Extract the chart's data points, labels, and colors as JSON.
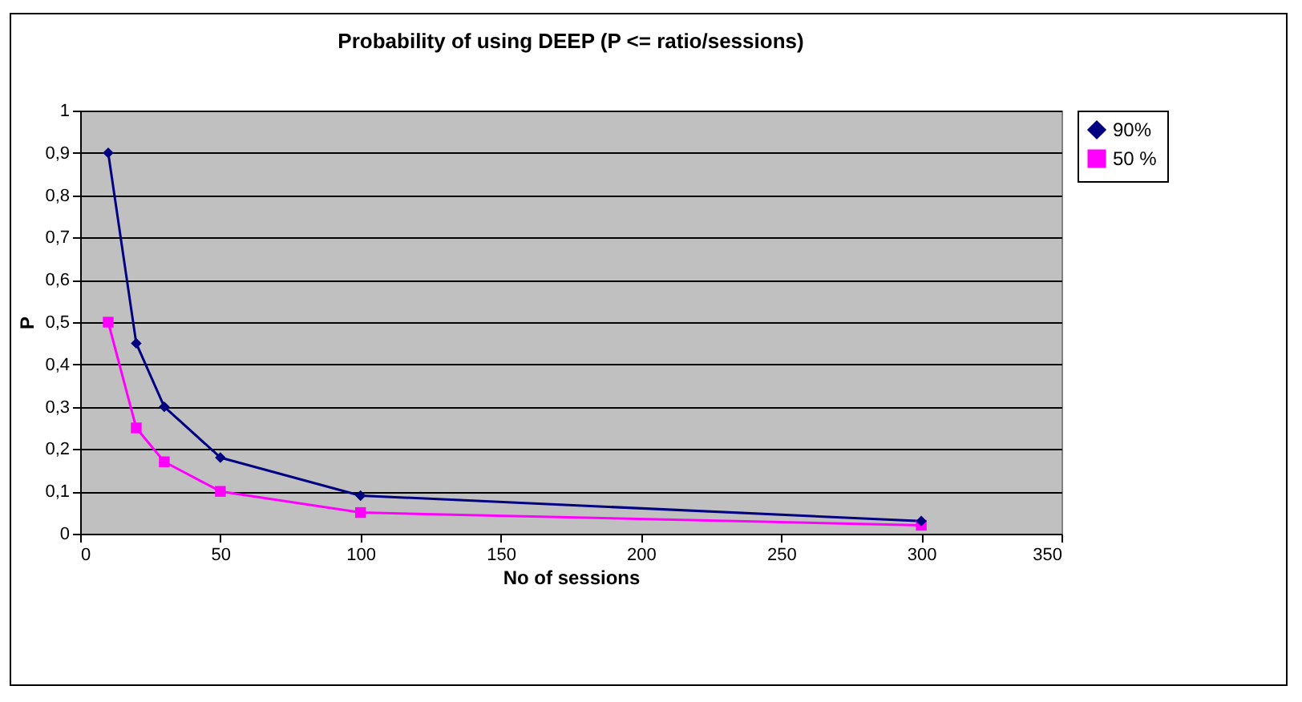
{
  "chart_data": {
    "type": "line",
    "title": "Probability of using DEEP (P <= ratio/sessions)",
    "xlabel": "No of sessions",
    "ylabel": "P",
    "x": [
      10,
      20,
      30,
      50,
      100,
      300
    ],
    "series": [
      {
        "name": "90%",
        "color": "#000080",
        "marker": "diamond",
        "values": [
          0.9,
          0.45,
          0.3,
          0.18,
          0.09,
          0.03
        ]
      },
      {
        "name": "50 %",
        "color": "#ff00ff",
        "marker": "square",
        "values": [
          0.5,
          0.25,
          0.17,
          0.1,
          0.05,
          0.02
        ]
      }
    ],
    "xlim": [
      0,
      350
    ],
    "xticks": [
      0,
      50,
      100,
      150,
      200,
      250,
      300,
      350
    ],
    "ylim": [
      0,
      1
    ],
    "yticks": [
      0,
      {
        "value": 0.1,
        "label": "0,1"
      },
      {
        "value": 0.2,
        "label": "0,2"
      },
      {
        "value": 0.3,
        "label": "0,3"
      },
      {
        "value": 0.4,
        "label": "0,4"
      },
      {
        "value": 0.5,
        "label": "0,5"
      },
      {
        "value": 0.6,
        "label": "0,6"
      },
      {
        "value": 0.7,
        "label": "0,7"
      },
      {
        "value": 0.8,
        "label": "0,8"
      },
      {
        "value": 0.9,
        "label": "0,9"
      },
      1
    ],
    "grid": "y",
    "legend": "right"
  }
}
